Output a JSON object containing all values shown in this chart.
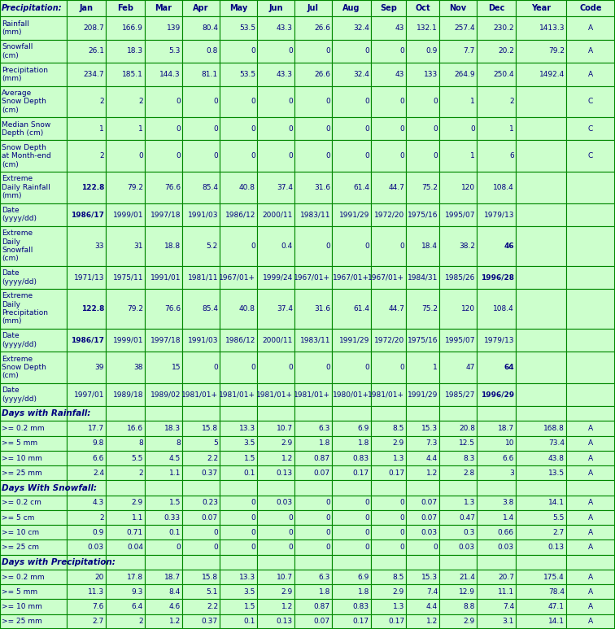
{
  "header": [
    "Precipitation:",
    "Jan",
    "Feb",
    "Mar",
    "Apr",
    "May",
    "Jun",
    "Jul",
    "Aug",
    "Sep",
    "Oct",
    "Nov",
    "Dec",
    "Year",
    "Code"
  ],
  "rows": [
    {
      "label": "Rainfall\n(mm)",
      "values": [
        "208.7",
        "166.9",
        "139",
        "80.4",
        "53.5",
        "43.3",
        "26.6",
        "32.4",
        "43",
        "132.1",
        "257.4",
        "230.2",
        "1413.3",
        "A"
      ],
      "bold_indices": [],
      "label_bold": false
    },
    {
      "label": "Snowfall\n(cm)",
      "values": [
        "26.1",
        "18.3",
        "5.3",
        "0.8",
        "0",
        "0",
        "0",
        "0",
        "0",
        "0.9",
        "7.7",
        "20.2",
        "79.2",
        "A"
      ],
      "bold_indices": [],
      "label_bold": false
    },
    {
      "label": "Precipitation\n(mm)",
      "values": [
        "234.7",
        "185.1",
        "144.3",
        "81.1",
        "53.5",
        "43.3",
        "26.6",
        "32.4",
        "43",
        "133",
        "264.9",
        "250.4",
        "1492.4",
        "A"
      ],
      "bold_indices": [],
      "label_bold": false
    },
    {
      "label": "Average\nSnow Depth\n(cm)",
      "values": [
        "2",
        "2",
        "0",
        "0",
        "0",
        "0",
        "0",
        "0",
        "0",
        "0",
        "1",
        "2",
        "",
        "C"
      ],
      "bold_indices": [],
      "label_bold": false
    },
    {
      "label": "Median Snow\nDepth (cm)",
      "values": [
        "1",
        "1",
        "0",
        "0",
        "0",
        "0",
        "0",
        "0",
        "0",
        "0",
        "0",
        "1",
        "",
        "C"
      ],
      "bold_indices": [],
      "label_bold": false
    },
    {
      "label": "Snow Depth\nat Month-end\n(cm)",
      "values": [
        "2",
        "0",
        "0",
        "0",
        "0",
        "0",
        "0",
        "0",
        "0",
        "0",
        "1",
        "6",
        "",
        "C"
      ],
      "bold_indices": [],
      "label_bold": false
    },
    {
      "label": "Extreme\nDaily Rainfall\n(mm)",
      "values": [
        "122.8",
        "79.2",
        "76.6",
        "85.4",
        "40.8",
        "37.4",
        "31.6",
        "61.4",
        "44.7",
        "75.2",
        "120",
        "108.4",
        "",
        ""
      ],
      "bold_indices": [
        0
      ],
      "label_bold": false
    },
    {
      "label": "Date\n(yyyy/dd)",
      "values": [
        "1986/17",
        "1999/01",
        "1997/18",
        "1991/03",
        "1986/12",
        "2000/11",
        "1983/11",
        "1991/29",
        "1972/20",
        "1975/16",
        "1995/07",
        "1979/13",
        "",
        ""
      ],
      "bold_indices": [
        0
      ],
      "label_bold": false
    },
    {
      "label": "Extreme\nDaily\nSnowfall\n(cm)",
      "values": [
        "33",
        "31",
        "18.8",
        "5.2",
        "0",
        "0.4",
        "0",
        "0",
        "0",
        "18.4",
        "38.2",
        "46",
        "",
        ""
      ],
      "bold_indices": [
        11
      ],
      "label_bold": false
    },
    {
      "label": "Date\n(yyyy/dd)",
      "values": [
        "1971/13",
        "1975/11",
        "1991/01",
        "1981/11",
        "1967/01+",
        "1999/24",
        "1967/01+",
        "1967/01+",
        "1967/01+",
        "1984/31",
        "1985/26",
        "1996/28",
        "",
        ""
      ],
      "bold_indices": [
        11
      ],
      "label_bold": false
    },
    {
      "label": "Extreme\nDaily\nPrecipitation\n(mm)",
      "values": [
        "122.8",
        "79.2",
        "76.6",
        "85.4",
        "40.8",
        "37.4",
        "31.6",
        "61.4",
        "44.7",
        "75.2",
        "120",
        "108.4",
        "",
        ""
      ],
      "bold_indices": [
        0
      ],
      "label_bold": false
    },
    {
      "label": "Date\n(yyyy/dd)",
      "values": [
        "1986/17",
        "1999/01",
        "1997/18",
        "1991/03",
        "1986/12",
        "2000/11",
        "1983/11",
        "1991/29",
        "1972/20",
        "1975/16",
        "1995/07",
        "1979/13",
        "",
        ""
      ],
      "bold_indices": [
        0
      ],
      "label_bold": false
    },
    {
      "label": "Extreme\nSnow Depth\n(cm)",
      "values": [
        "39",
        "38",
        "15",
        "0",
        "0",
        "0",
        "0",
        "0",
        "0",
        "1",
        "47",
        "64",
        "",
        ""
      ],
      "bold_indices": [
        11
      ],
      "label_bold": false
    },
    {
      "label": "Date\n(yyyy/dd)",
      "values": [
        "1997/01",
        "1989/18",
        "1989/02",
        "1981/01+",
        "1981/01+",
        "1981/01+",
        "1981/01+",
        "1980/01+",
        "1981/01+",
        "1991/29",
        "1985/27",
        "1996/29",
        "",
        ""
      ],
      "bold_indices": [
        11
      ],
      "label_bold": false
    },
    {
      "label": "Days with Rainfall:",
      "values": [
        "",
        "",
        "",
        "",
        "",
        "",
        "",
        "",
        "",
        "",
        "",
        "",
        "",
        ""
      ],
      "bold_indices": [],
      "label_bold": true,
      "section_header": true
    },
    {
      "label": ">= 0.2 mm",
      "values": [
        "17.7",
        "16.6",
        "18.3",
        "15.8",
        "13.3",
        "10.7",
        "6.3",
        "6.9",
        "8.5",
        "15.3",
        "20.8",
        "18.7",
        "168.8",
        "A"
      ],
      "bold_indices": [],
      "label_bold": false
    },
    {
      "label": ">= 5 mm",
      "values": [
        "9.8",
        "8",
        "8",
        "5",
        "3.5",
        "2.9",
        "1.8",
        "1.8",
        "2.9",
        "7.3",
        "12.5",
        "10",
        "73.4",
        "A"
      ],
      "bold_indices": [],
      "label_bold": false
    },
    {
      "label": ">= 10 mm",
      "values": [
        "6.6",
        "5.5",
        "4.5",
        "2.2",
        "1.5",
        "1.2",
        "0.87",
        "0.83",
        "1.3",
        "4.4",
        "8.3",
        "6.6",
        "43.8",
        "A"
      ],
      "bold_indices": [],
      "label_bold": false
    },
    {
      "label": ">= 25 mm",
      "values": [
        "2.4",
        "2",
        "1.1",
        "0.37",
        "0.1",
        "0.13",
        "0.07",
        "0.17",
        "0.17",
        "1.2",
        "2.8",
        "3",
        "13.5",
        "A"
      ],
      "bold_indices": [],
      "label_bold": false
    },
    {
      "label": "Days With Snowfall:",
      "values": [
        "",
        "",
        "",
        "",
        "",
        "",
        "",
        "",
        "",
        "",
        "",
        "",
        "",
        ""
      ],
      "bold_indices": [],
      "label_bold": true,
      "section_header": true
    },
    {
      "label": ">= 0.2 cm",
      "values": [
        "4.3",
        "2.9",
        "1.5",
        "0.23",
        "0",
        "0.03",
        "0",
        "0",
        "0",
        "0.07",
        "1.3",
        "3.8",
        "14.1",
        "A"
      ],
      "bold_indices": [],
      "label_bold": false
    },
    {
      "label": ">= 5 cm",
      "values": [
        "2",
        "1.1",
        "0.33",
        "0.07",
        "0",
        "0",
        "0",
        "0",
        "0",
        "0.07",
        "0.47",
        "1.4",
        "5.5",
        "A"
      ],
      "bold_indices": [],
      "label_bold": false
    },
    {
      "label": ">= 10 cm",
      "values": [
        "0.9",
        "0.71",
        "0.1",
        "0",
        "0",
        "0",
        "0",
        "0",
        "0",
        "0.03",
        "0.3",
        "0.66",
        "2.7",
        "A"
      ],
      "bold_indices": [],
      "label_bold": false
    },
    {
      "label": ">= 25 cm",
      "values": [
        "0.03",
        "0.04",
        "0",
        "0",
        "0",
        "0",
        "0",
        "0",
        "0",
        "0",
        "0.03",
        "0.03",
        "0.13",
        "A"
      ],
      "bold_indices": [],
      "label_bold": false
    },
    {
      "label": "Days with Precipitation:",
      "values": [
        "",
        "",
        "",
        "",
        "",
        "",
        "",
        "",
        "",
        "",
        "",
        "",
        "",
        ""
      ],
      "bold_indices": [],
      "label_bold": true,
      "section_header": true
    },
    {
      "label": ">= 0.2 mm",
      "values": [
        "20",
        "17.8",
        "18.7",
        "15.8",
        "13.3",
        "10.7",
        "6.3",
        "6.9",
        "8.5",
        "15.3",
        "21.4",
        "20.7",
        "175.4",
        "A"
      ],
      "bold_indices": [],
      "label_bold": false
    },
    {
      "label": ">= 5 mm",
      "values": [
        "11.3",
        "9.3",
        "8.4",
        "5.1",
        "3.5",
        "2.9",
        "1.8",
        "1.8",
        "2.9",
        "7.4",
        "12.9",
        "11.1",
        "78.4",
        "A"
      ],
      "bold_indices": [],
      "label_bold": false
    },
    {
      "label": ">= 10 mm",
      "values": [
        "7.6",
        "6.4",
        "4.6",
        "2.2",
        "1.5",
        "1.2",
        "0.87",
        "0.83",
        "1.3",
        "4.4",
        "8.8",
        "7.4",
        "47.1",
        "A"
      ],
      "bold_indices": [],
      "label_bold": false
    },
    {
      "label": ">= 25 mm",
      "values": [
        "2.7",
        "2",
        "1.2",
        "0.37",
        "0.1",
        "0.13",
        "0.07",
        "0.17",
        "0.17",
        "1.2",
        "2.9",
        "3.1",
        "14.1",
        "A"
      ],
      "bold_indices": [],
      "label_bold": false
    }
  ],
  "bg_color_normal": "#ccffcc",
  "bg_color_section": "#ccffcc",
  "header_bg": "#ccffcc",
  "border_color": "#008800",
  "text_color": "#000080",
  "header_text_color": "#000080"
}
